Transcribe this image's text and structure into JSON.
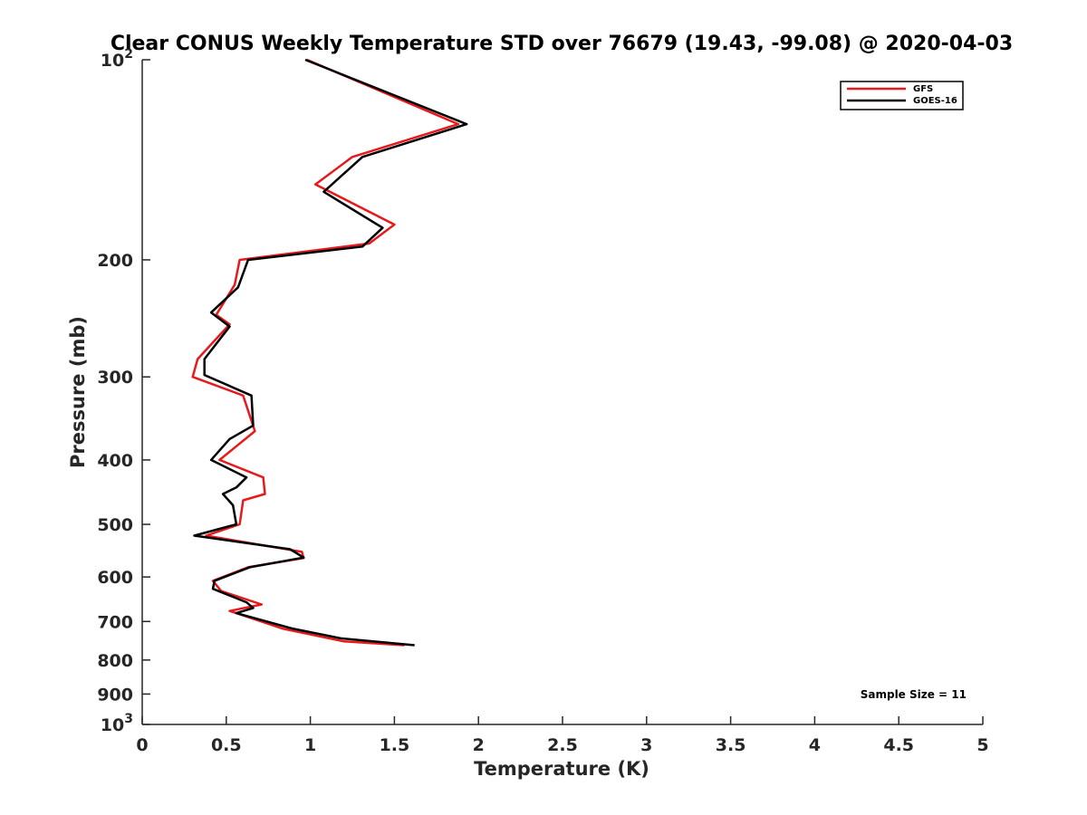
{
  "chart_data": {
    "type": "line",
    "title": "Clear CONUS Weekly Temperature STD over 76679 (19.43, -99.08) @ 2020-04-03",
    "xlabel": "Temperature (K)",
    "ylabel": "Pressure (mb)",
    "xlim": [
      0,
      5
    ],
    "ylim": [
      100,
      1000
    ],
    "y_scale": "log",
    "y_reversed": true,
    "grid": false,
    "legend_position": "top-right",
    "x_ticks": [
      0,
      0.5,
      1,
      1.5,
      2,
      2.5,
      3,
      3.5,
      4,
      4.5,
      5
    ],
    "x_tick_labels": [
      "0",
      "0.5",
      "1",
      "1.5",
      "2",
      "2.5",
      "3",
      "3.5",
      "4",
      "4.5",
      "5"
    ],
    "y_ticks": [
      {
        "value": 100,
        "base": "10",
        "exp": "2"
      },
      {
        "value": 200,
        "label": "200"
      },
      {
        "value": 300,
        "label": "300"
      },
      {
        "value": 400,
        "label": "400"
      },
      {
        "value": 500,
        "label": "500"
      },
      {
        "value": 600,
        "label": "600"
      },
      {
        "value": 700,
        "label": "700"
      },
      {
        "value": 800,
        "label": "800"
      },
      {
        "value": 900,
        "label": "900"
      },
      {
        "value": 1000,
        "base": "10",
        "exp": "3"
      }
    ],
    "series": [
      {
        "name": "GFS",
        "color": "#e8191b",
        "points": [
          [
            0.98,
            100
          ],
          [
            1.88,
            125
          ],
          [
            1.25,
            140
          ],
          [
            1.03,
            154
          ],
          [
            1.5,
            177
          ],
          [
            1.35,
            189
          ],
          [
            0.58,
            200
          ],
          [
            0.55,
            218
          ],
          [
            0.44,
            242
          ],
          [
            0.52,
            250
          ],
          [
            0.33,
            282
          ],
          [
            0.3,
            300
          ],
          [
            0.6,
            320
          ],
          [
            0.67,
            362
          ],
          [
            0.46,
            400
          ],
          [
            0.72,
            425
          ],
          [
            0.73,
            450
          ],
          [
            0.6,
            460
          ],
          [
            0.58,
            500
          ],
          [
            0.38,
            520
          ],
          [
            0.95,
            550
          ],
          [
            0.96,
            562
          ],
          [
            0.63,
            580
          ],
          [
            0.42,
            608
          ],
          [
            0.47,
            630
          ],
          [
            0.71,
            660
          ],
          [
            0.52,
            675
          ],
          [
            0.84,
            718
          ],
          [
            1.2,
            750
          ],
          [
            1.56,
            760
          ]
        ]
      },
      {
        "name": "GOES-16",
        "color": "#000000",
        "points": [
          [
            0.97,
            100
          ],
          [
            1.93,
            125
          ],
          [
            1.31,
            140
          ],
          [
            1.08,
            158
          ],
          [
            1.43,
            179
          ],
          [
            1.31,
            191
          ],
          [
            0.63,
            200
          ],
          [
            0.57,
            220
          ],
          [
            0.41,
            240
          ],
          [
            0.52,
            252
          ],
          [
            0.37,
            282
          ],
          [
            0.37,
            298
          ],
          [
            0.65,
            320
          ],
          [
            0.66,
            355
          ],
          [
            0.52,
            372
          ],
          [
            0.41,
            400
          ],
          [
            0.62,
            425
          ],
          [
            0.56,
            440
          ],
          [
            0.48,
            450
          ],
          [
            0.54,
            468
          ],
          [
            0.56,
            500
          ],
          [
            0.31,
            520
          ],
          [
            0.88,
            545
          ],
          [
            0.96,
            561
          ],
          [
            0.64,
            580
          ],
          [
            0.43,
            608
          ],
          [
            0.42,
            625
          ],
          [
            0.62,
            655
          ],
          [
            0.66,
            668
          ],
          [
            0.56,
            680
          ],
          [
            0.89,
            717
          ],
          [
            1.18,
            742
          ],
          [
            1.62,
            760
          ]
        ]
      }
    ],
    "annotation": "Sample Size = 11"
  }
}
